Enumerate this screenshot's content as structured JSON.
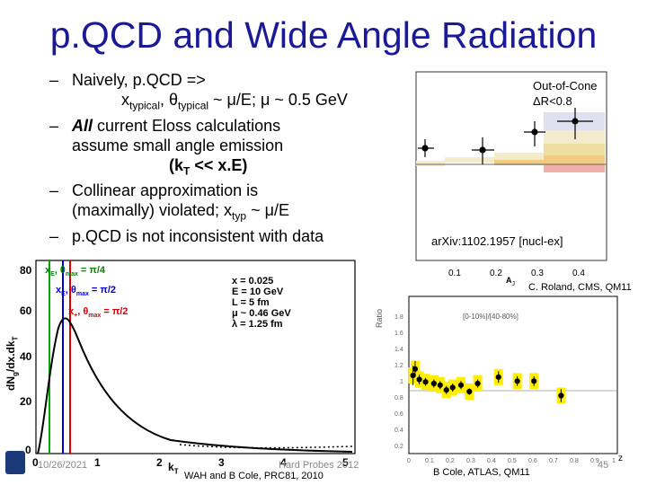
{
  "slide": {
    "title": "p.QCD and Wide Angle Radiation",
    "bullets": [
      {
        "dash": "–",
        "lines": [
          "Naively, p.QCD =>"
        ]
      },
      {
        "dash": "",
        "math": true
      },
      {
        "dash": "–",
        "bold": "All",
        "lines": [
          " current Eloss calculations",
          "assume small angle emission"
        ]
      },
      {
        "dash": "",
        "kt": true
      },
      {
        "dash": "–",
        "lines": [
          "Collinear approximation is"
        ]
      },
      {
        "dash": "",
        "last": true
      },
      {
        "dash": "–",
        "lines": [
          "p.QCD is not inconsistent with data"
        ]
      }
    ],
    "math_line": {
      "a": "x",
      "a_sub": "typical",
      "b": ", θ",
      "b_sub": "typical",
      "c": " ~ μ/E; μ ~ 0.5 GeV"
    },
    "kt_line": {
      "a": "(k",
      "a_sub": "T",
      "b": " << x.E)"
    },
    "violated_line": {
      "a": "(maximally) violated; x",
      "a_sub": "typ",
      "b": " ~ μ/E"
    },
    "credit_top": "C. Roland, CMS, QM11",
    "credit_left": "WAH and B Cole, PRC81, 2010",
    "credit_right": "B Cole, ATLAS, QM11",
    "footer": {
      "date": "10/26/2021",
      "conference": "Hard Probes 2012",
      "page": "45"
    }
  },
  "cms_plot": {
    "legend": [
      "Out-of-Cone",
      "ΔR<0.8"
    ],
    "arxiv": "arXiv:1102.1957 [nucl-ex]",
    "x_ticks": [
      "0.1",
      "0.2",
      "0.3",
      "0.4"
    ],
    "x_label": "A",
    "x_label_sub": "J",
    "stack_colors": [
      "#e0e0f0",
      "#f2eccc",
      "#eedda0",
      "#f2cc80",
      "#f0b0a8",
      "#dcdcdc"
    ]
  },
  "theory_plot": {
    "y_label": "dN",
    "y_label_sub": "g",
    "y_label_tail": "/dx.dk",
    "y_label_tail_sub": "T",
    "x_label": "k",
    "x_label_sub": "T",
    "y_ticks": [
      "80",
      "60",
      "40",
      "20",
      "0"
    ],
    "x_ticks": [
      "0",
      "1",
      "2",
      "3",
      "4",
      "5"
    ],
    "curve_labels": [
      {
        "text": "x",
        "sub": "E",
        "rest": ", θ",
        "sub2": "max",
        "rest2": " = π/4",
        "color": "#008800"
      },
      {
        "text": "x",
        "sub": "E",
        "rest": ", θ",
        "sub2": "max",
        "rest2": " = π/2",
        "color": "#0000dd"
      },
      {
        "text": "x",
        "sub": "+",
        "rest": ", θ",
        "sub2": "max",
        "rest2": " = π/2",
        "color": "#dd0000"
      }
    ],
    "params": [
      "x = 0.025",
      "E = 10 GeV",
      "L = 5 fm",
      "μ ~ 0.46 GeV",
      "λ = 1.25 fm"
    ]
  },
  "atlas_plot": {
    "y_label": "Ratio",
    "y_ticks": [
      "1.8",
      "1.6",
      "1.4",
      "1.2",
      "1",
      "0.8",
      "0.6",
      "0.4",
      "0.2"
    ],
    "x_ticks": [
      "0",
      "0.1",
      "0.2",
      "0.3",
      "0.4",
      "0.5",
      "0.6",
      "0.7",
      "0.8",
      "0.9",
      "1"
    ],
    "x_label": "z",
    "centrality": "[0-10%]/[40-80%]",
    "band_color": "#ffee00"
  }
}
